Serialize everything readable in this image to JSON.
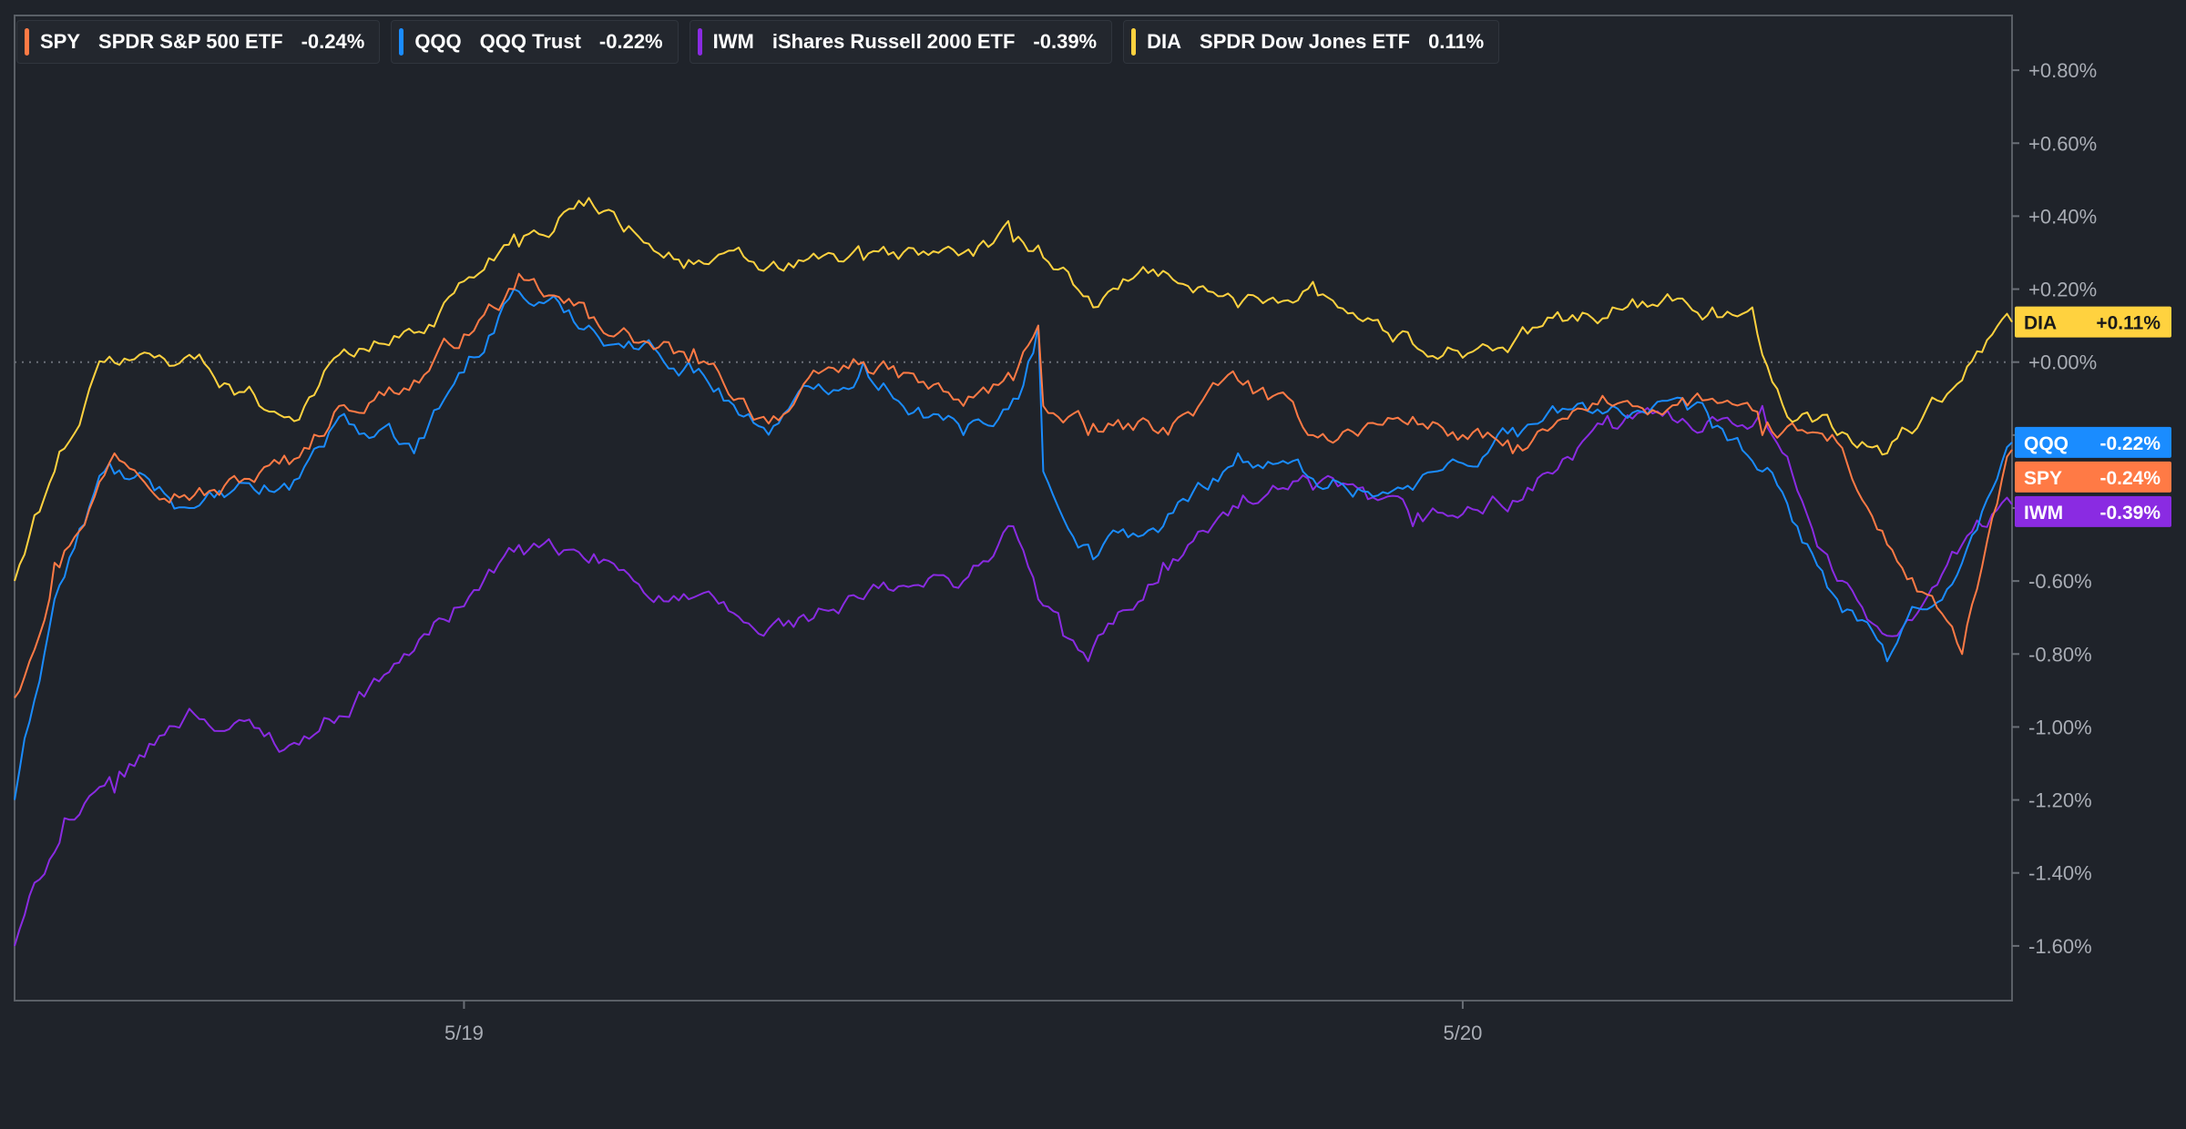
{
  "chart_data": {
    "type": "line",
    "title": "",
    "xlabel": "",
    "ylabel": "",
    "ylim": [
      -1.75,
      0.95
    ],
    "x_tick_labels": [
      "5/19",
      "5/20"
    ],
    "x_tick_index": [
      90,
      290
    ],
    "num_points": 401,
    "y_ticks": [
      {
        "value": 0.8,
        "label": "+0.80%"
      },
      {
        "value": 0.6,
        "label": "+0.60%"
      },
      {
        "value": 0.4,
        "label": "+0.40%"
      },
      {
        "value": 0.2,
        "label": "+0.20%"
      },
      {
        "value": 0.0,
        "label": "+0.00%"
      },
      {
        "value": -0.2,
        "label": "-0.20%"
      },
      {
        "value": -0.4,
        "label": "-0.40%"
      },
      {
        "value": -0.6,
        "label": "-0.60%"
      },
      {
        "value": -0.8,
        "label": "-0.80%"
      },
      {
        "value": -1.0,
        "label": "-1.00%"
      },
      {
        "value": -1.2,
        "label": "-1.20%"
      },
      {
        "value": -1.4,
        "label": "-1.40%"
      },
      {
        "value": -1.6,
        "label": "-1.60%"
      }
    ],
    "series": [
      {
        "ticker": "SPY",
        "name": "SPDR S&P 500 ETF",
        "change": "-0.24%",
        "tag": "-0.24%",
        "color": "#ff7a45",
        "last": -0.24,
        "keyframes": [
          [
            0,
            -0.92
          ],
          [
            8,
            -0.55
          ],
          [
            20,
            -0.25
          ],
          [
            40,
            -0.35
          ],
          [
            55,
            -0.28
          ],
          [
            65,
            -0.12
          ],
          [
            80,
            -0.05
          ],
          [
            100,
            0.2
          ],
          [
            115,
            0.12
          ],
          [
            135,
            0.0
          ],
          [
            150,
            -0.15
          ],
          [
            170,
            0.0
          ],
          [
            190,
            -0.12
          ],
          [
            200,
            -0.05
          ],
          [
            205,
            0.1
          ],
          [
            206,
            -0.12
          ],
          [
            215,
            -0.2
          ],
          [
            230,
            -0.18
          ],
          [
            245,
            -0.05
          ],
          [
            260,
            -0.2
          ],
          [
            280,
            -0.15
          ],
          [
            300,
            -0.25
          ],
          [
            320,
            -0.12
          ],
          [
            340,
            -0.1
          ],
          [
            350,
            -0.2
          ],
          [
            365,
            -0.22
          ],
          [
            375,
            -0.5
          ],
          [
            390,
            -0.8
          ],
          [
            400,
            -0.24
          ]
        ]
      },
      {
        "ticker": "QQQ",
        "name": "QQQ Trust",
        "change": "-0.22%",
        "tag": "-0.22%",
        "color": "#1a8cff",
        "last": -0.22,
        "keyframes": [
          [
            0,
            -1.2
          ],
          [
            8,
            -0.65
          ],
          [
            18,
            -0.3
          ],
          [
            35,
            -0.4
          ],
          [
            55,
            -0.35
          ],
          [
            65,
            -0.15
          ],
          [
            80,
            -0.25
          ],
          [
            100,
            0.2
          ],
          [
            115,
            0.1
          ],
          [
            135,
            0.0
          ],
          [
            150,
            -0.18
          ],
          [
            170,
            0.0
          ],
          [
            190,
            -0.2
          ],
          [
            200,
            -0.1
          ],
          [
            205,
            0.1
          ],
          [
            206,
            -0.3
          ],
          [
            215,
            -0.5
          ],
          [
            230,
            -0.45
          ],
          [
            245,
            -0.25
          ],
          [
            260,
            -0.32
          ],
          [
            280,
            -0.35
          ],
          [
            300,
            -0.18
          ],
          [
            320,
            -0.12
          ],
          [
            340,
            -0.18
          ],
          [
            350,
            -0.3
          ],
          [
            365,
            -0.65
          ],
          [
            375,
            -0.82
          ],
          [
            390,
            -0.55
          ],
          [
            400,
            -0.22
          ]
        ]
      },
      {
        "ticker": "IWM",
        "name": "iShares Russell 2000 ETF",
        "change": "-0.39%",
        "tag": "-0.39%",
        "color": "#8a2be2",
        "last": -0.39,
        "keyframes": [
          [
            0,
            -1.6
          ],
          [
            10,
            -1.25
          ],
          [
            20,
            -1.18
          ],
          [
            35,
            -0.95
          ],
          [
            55,
            -1.05
          ],
          [
            75,
            -0.85
          ],
          [
            100,
            -0.52
          ],
          [
            115,
            -0.55
          ],
          [
            135,
            -0.65
          ],
          [
            150,
            -0.75
          ],
          [
            170,
            -0.65
          ],
          [
            190,
            -0.6
          ],
          [
            200,
            -0.45
          ],
          [
            205,
            -0.65
          ],
          [
            210,
            -0.75
          ],
          [
            215,
            -0.82
          ],
          [
            230,
            -0.55
          ],
          [
            245,
            -0.4
          ],
          [
            260,
            -0.35
          ],
          [
            280,
            -0.45
          ],
          [
            300,
            -0.38
          ],
          [
            320,
            -0.18
          ],
          [
            340,
            -0.15
          ],
          [
            350,
            -0.12
          ],
          [
            365,
            -0.6
          ],
          [
            375,
            -0.75
          ],
          [
            390,
            -0.5
          ],
          [
            400,
            -0.39
          ]
        ]
      },
      {
        "ticker": "DIA",
        "name": "SPDR Dow Jones ETF",
        "change": "0.11%",
        "tag": "+0.11%",
        "color": "#ffd23f",
        "last": 0.11,
        "keyframes": [
          [
            0,
            -0.6
          ],
          [
            8,
            -0.3
          ],
          [
            18,
            0.0
          ],
          [
            35,
            0.02
          ],
          [
            55,
            -0.15
          ],
          [
            65,
            0.02
          ],
          [
            80,
            0.08
          ],
          [
            100,
            0.35
          ],
          [
            115,
            0.45
          ],
          [
            135,
            0.28
          ],
          [
            150,
            0.25
          ],
          [
            170,
            0.28
          ],
          [
            190,
            0.3
          ],
          [
            200,
            0.33
          ],
          [
            205,
            0.32
          ],
          [
            215,
            0.18
          ],
          [
            230,
            0.25
          ],
          [
            245,
            0.15
          ],
          [
            260,
            0.22
          ],
          [
            280,
            0.05
          ],
          [
            300,
            0.05
          ],
          [
            320,
            0.15
          ],
          [
            340,
            0.15
          ],
          [
            348,
            0.15
          ],
          [
            355,
            -0.15
          ],
          [
            365,
            -0.2
          ],
          [
            375,
            -0.25
          ],
          [
            390,
            -0.05
          ],
          [
            400,
            0.11
          ]
        ]
      }
    ]
  }
}
